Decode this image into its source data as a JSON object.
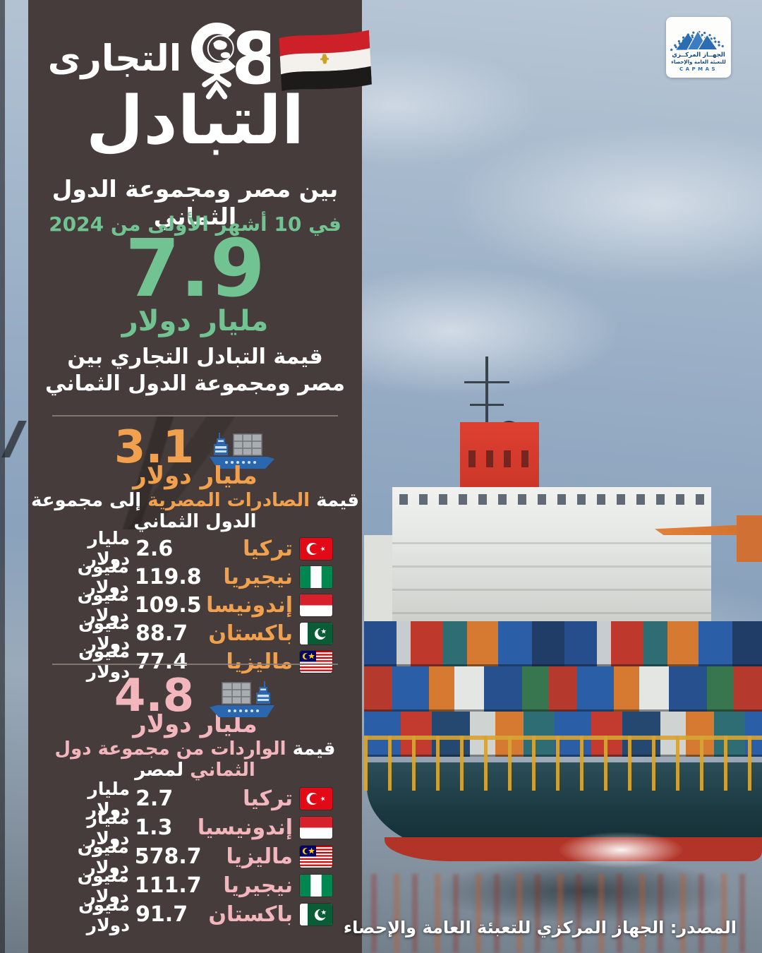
{
  "colors": {
    "panel": "#453c3b",
    "green": "#72c392",
    "orange": "#f1a14e",
    "pink": "#f3b6bd",
    "divider": "#8d8178",
    "capmas_blue": "#2b6cb3"
  },
  "capmas": {
    "line1": "الجهــاز المركــزي",
    "line2": "للتعبئة العامة والإحصاء",
    "line3": "CAPMAS"
  },
  "header": {
    "title_line1": "التجارى",
    "title_line2": "التبادل",
    "subtitle": "بين مصر ومجموعة الدول الثماني",
    "period": "في 10 أشهر الأولى من 2024"
  },
  "total": {
    "value": "7.9",
    "unit": "مليار دولار",
    "caption_line1": "قيمة التبادل التجاري بين",
    "caption_line2": "مصر ومجموعة الدول الثماني"
  },
  "exports": {
    "value": "3.1",
    "unit": "مليار دولار",
    "caption_prefix": "قيمة",
    "caption_highlight": "الصادرات المصرية",
    "caption_suffix": "إلى مجموعة الدول الثماني",
    "rows": [
      {
        "country": "تركيا",
        "flag": "turkey",
        "value": "2.6",
        "unit": "مليار دولار"
      },
      {
        "country": "نيجيريا",
        "flag": "nigeria",
        "value": "119.8",
        "unit": "مليون دولار"
      },
      {
        "country": "إندونيسا",
        "flag": "indonesia",
        "value": "109.5",
        "unit": "مليون دولار"
      },
      {
        "country": "باكستان",
        "flag": "pakistan",
        "value": "88.7",
        "unit": "مليون دولار"
      },
      {
        "country": "ماليزيا",
        "flag": "malaysia",
        "value": "77.4",
        "unit": "مليون دولار"
      }
    ]
  },
  "imports": {
    "value": "4.8",
    "unit": "مليار دولار",
    "caption_prefix": "قيمة",
    "caption_highlight": "الواردات من مجموعة دول الثماني",
    "caption_suffix": "لمصر",
    "rows": [
      {
        "country": "تركيا",
        "flag": "turkey",
        "value": "2.7",
        "unit": "مليار دولار"
      },
      {
        "country": "إندونيسيا",
        "flag": "indonesia",
        "value": "1.3",
        "unit": "مليار دولار"
      },
      {
        "country": "ماليزيا",
        "flag": "malaysia",
        "value": "578.7",
        "unit": "مليون دولار"
      },
      {
        "country": "نيجيريا",
        "flag": "nigeria",
        "value": "111.7",
        "unit": "مليون دولار"
      },
      {
        "country": "باكستان",
        "flag": "pakistan",
        "value": "91.7",
        "unit": "مليون دولار"
      }
    ]
  },
  "meta": {
    "source_label": "المصدر: الجهاز المركزي للتعبئة العامة والإحصاء"
  },
  "chart_data": [
    {
      "type": "table",
      "title": "قيمة التبادل التجاري بين مصر ومجموعة الدول الثماني",
      "total_billion_usd": 7.9,
      "period": "أول 10 أشهر من 2024"
    },
    {
      "type": "table",
      "title": "قيمة الصادرات المصرية إلى مجموعة الدول الثماني",
      "total_display": "3.1 مليار دولار",
      "total_million_usd": 3100,
      "categories": [
        "تركيا",
        "نيجيريا",
        "إندونيسا",
        "باكستان",
        "ماليزيا"
      ],
      "values_million_usd": [
        2600,
        119.8,
        109.5,
        88.7,
        77.4
      ],
      "values_display": [
        "2.6 مليار دولار",
        "119.8 مليون دولار",
        "109.5 مليون دولار",
        "88.7 مليون دولار",
        "77.4 مليون دولار"
      ]
    },
    {
      "type": "table",
      "title": "قيمة الواردات من مجموعة دول الثماني لمصر",
      "total_display": "4.8 مليار دولار",
      "total_million_usd": 4800,
      "categories": [
        "تركيا",
        "إندونيسيا",
        "ماليزيا",
        "نيجيريا",
        "باكستان"
      ],
      "values_million_usd": [
        2700,
        1300,
        578.7,
        111.7,
        91.7
      ],
      "values_display": [
        "2.7 مليار دولار",
        "1.3 مليار دولار",
        "578.7 مليون دولار",
        "111.7 مليون دولار",
        "91.7 مليون دولار"
      ]
    }
  ]
}
